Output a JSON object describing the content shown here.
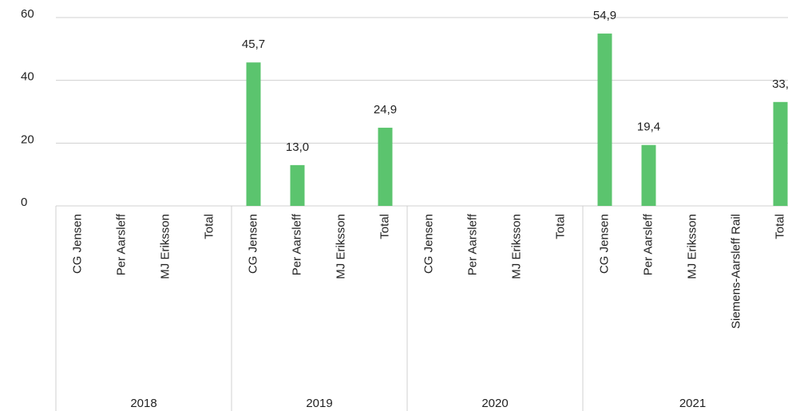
{
  "chart_data": {
    "type": "bar",
    "color": "#5bc46e",
    "grid": true,
    "ylim": [
      0,
      60
    ],
    "yticks": [
      0,
      20,
      40,
      60
    ],
    "groups": [
      {
        "name": "2018",
        "categories": [
          "CG Jensen",
          "Per Aarsleff",
          "MJ Eriksson",
          "Total"
        ],
        "values": [
          null,
          null,
          null,
          null
        ],
        "value_labels": [
          null,
          null,
          null,
          null
        ]
      },
      {
        "name": "2019",
        "categories": [
          "CG Jensen",
          "Per Aarsleff",
          "MJ Eriksson",
          "Total"
        ],
        "values": [
          45.7,
          13.0,
          null,
          24.9
        ],
        "value_labels": [
          "45,7",
          "13,0",
          null,
          "24,9"
        ]
      },
      {
        "name": "2020",
        "categories": [
          "CG Jensen",
          "Per Aarsleff",
          "MJ Eriksson",
          "Total"
        ],
        "values": [
          null,
          null,
          null,
          null
        ],
        "value_labels": [
          null,
          null,
          null,
          null
        ]
      },
      {
        "name": "2021",
        "categories": [
          "CG Jensen",
          "Per Aarsleff",
          "MJ Eriksson",
          "Siemens-Aarsleff Rail",
          "Total"
        ],
        "values": [
          54.9,
          19.4,
          null,
          null,
          33.1
        ],
        "value_labels": [
          "54,9",
          "19,4",
          null,
          null,
          "33,"
        ]
      }
    ]
  }
}
